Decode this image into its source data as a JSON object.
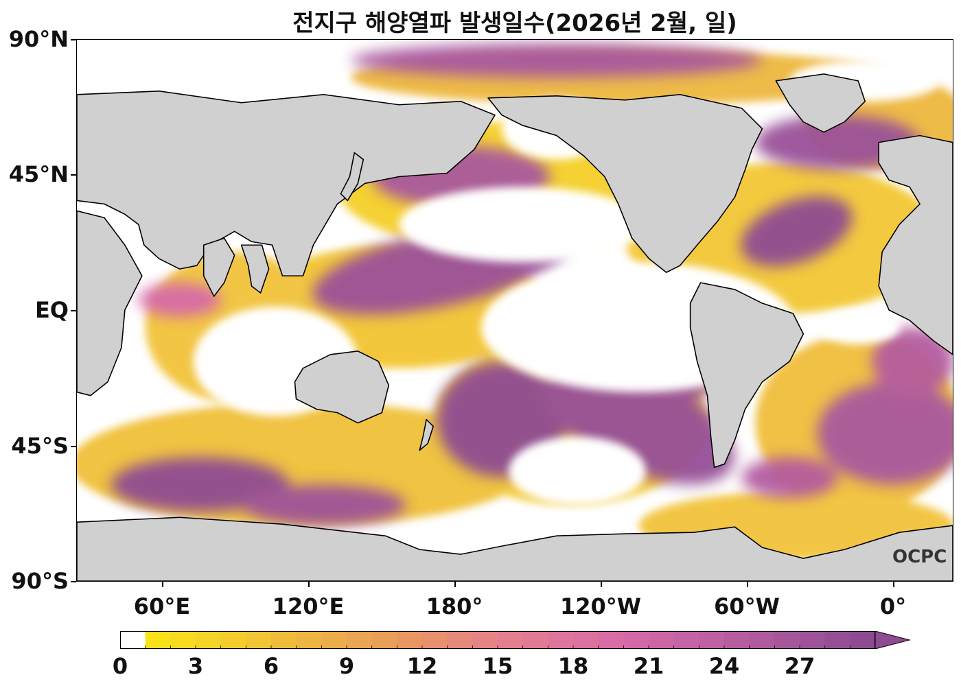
{
  "title": "전지구 해양열파 발생일수(2026년 2월, 일)",
  "lat_labels": [
    "90°N",
    "45°N",
    "EQ",
    "45°S",
    "90°S"
  ],
  "lon_labels": [
    "60°E",
    "120°E",
    "180°",
    "120°W",
    "60°W",
    "0°"
  ],
  "colorbar": {
    "tick_labels": [
      "0",
      "3",
      "6",
      "9",
      "12",
      "15",
      "18",
      "21",
      "24",
      "27"
    ],
    "min": 0,
    "max": 30,
    "extend": "max",
    "colors": [
      "#ffffff",
      "#f9e21a",
      "#f0c038",
      "#e89b5c",
      "#e57e90",
      "#d66aa8",
      "#b45c9f",
      "#8e4b93"
    ]
  },
  "legend_colors": {
    "land": "#d0d0d0",
    "ocean_zero": "#ffffff",
    "low": "#f9e21a",
    "mid": "#e57e90",
    "high": "#8e4b93"
  },
  "watermark": "OCPC"
}
